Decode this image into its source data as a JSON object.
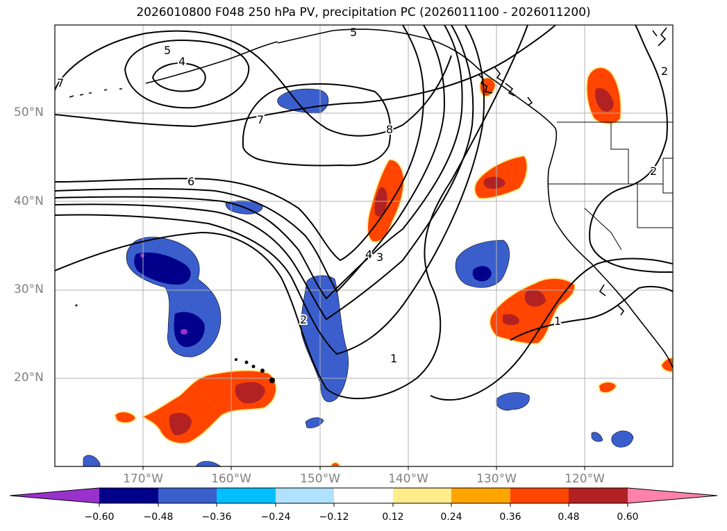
{
  "title": "2026010800 F048 250 hPa PV, precipitation PC (2026011100 - 2026011200)",
  "map": {
    "lat_labels": [
      "50°N",
      "40°N",
      "30°N",
      "20°N"
    ],
    "lon_labels": [
      "170°W",
      "160°W",
      "150°W",
      "140°W",
      "130°W",
      "120°W"
    ],
    "contour_labels": [
      "5",
      "4",
      "7",
      "7",
      "5",
      "8",
      "6",
      "4",
      "3",
      "2",
      "1",
      "1",
      "2",
      "2"
    ]
  },
  "colorbar": {
    "tick_labels": [
      "−0.60",
      "−0.48",
      "−0.36",
      "−0.24",
      "−0.12",
      "0.12",
      "0.24",
      "0.36",
      "0.48",
      "0.60"
    ],
    "colors": [
      "#9932cc",
      "#00008b",
      "#3a5fcd",
      "#00bfff",
      "#b0e2ff",
      "#ffffff",
      "#ffec8b",
      "#ffa500",
      "#ff4500",
      "#b22222",
      "#ff82ab"
    ]
  }
}
